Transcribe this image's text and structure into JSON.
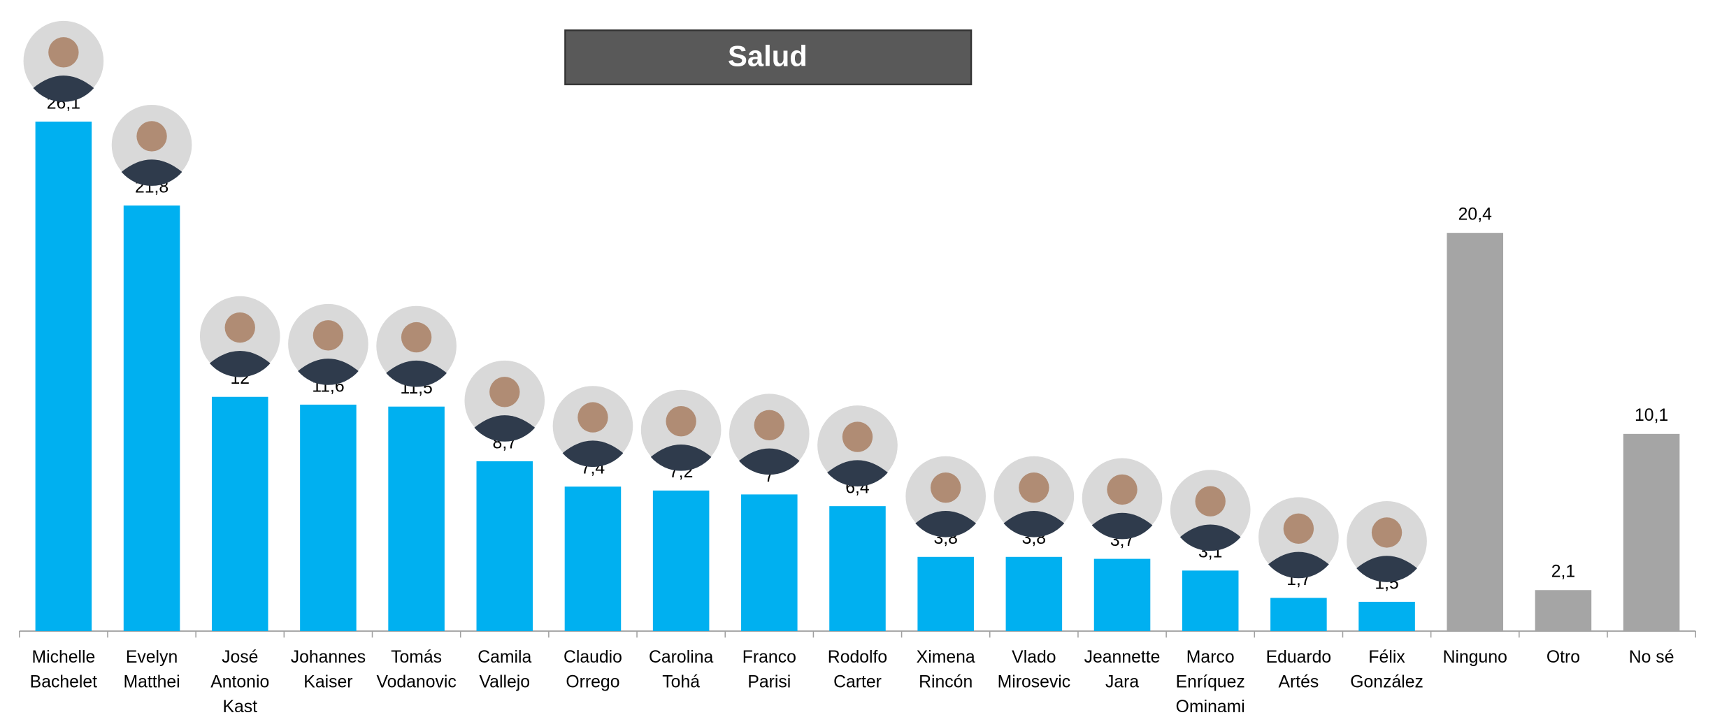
{
  "chart_data": {
    "type": "bar",
    "title": "Salud",
    "categories": [
      "Michelle\nBachelet",
      "Evelyn\nMatthei",
      "José\nAntonio\nKast",
      "Johannes\nKaiser",
      "Tomás\nVodanovic",
      "Camila\nVallejo",
      "Claudio\nOrrego",
      "Carolina\nTohá",
      "Franco\nParisi",
      "Rodolfo\nCarter",
      "Ximena\nRincón",
      "Vlado\nMirosevic",
      "Jeannette\nJara",
      "Marco\nEnríquez\nOminami",
      "Eduardo\nArtés",
      "Félix\nGonzález",
      "Ninguno",
      "Otro",
      "No sé"
    ],
    "values": [
      26.1,
      21.8,
      12,
      11.6,
      11.5,
      8.7,
      7.4,
      7.2,
      7,
      6.4,
      3.8,
      3.8,
      3.7,
      3.1,
      1.7,
      1.5,
      20.4,
      2.1,
      10.1
    ],
    "value_labels": [
      "26,1",
      "21,8",
      "12",
      "11,6",
      "11,5",
      "8,7",
      "7,4",
      "7,2",
      "7",
      "6,4",
      "3,8",
      "3,8",
      "3,7",
      "3,1",
      "1,7",
      "1,5",
      "20,4",
      "2,1",
      "10,1"
    ],
    "colors": [
      "#00b0f0",
      "#00b0f0",
      "#00b0f0",
      "#00b0f0",
      "#00b0f0",
      "#00b0f0",
      "#00b0f0",
      "#00b0f0",
      "#00b0f0",
      "#00b0f0",
      "#00b0f0",
      "#00b0f0",
      "#00b0f0",
      "#00b0f0",
      "#00b0f0",
      "#00b0f0",
      "#a5a5a5",
      "#a5a5a5",
      "#a5a5a5"
    ],
    "ylim": [
      0,
      30
    ]
  }
}
